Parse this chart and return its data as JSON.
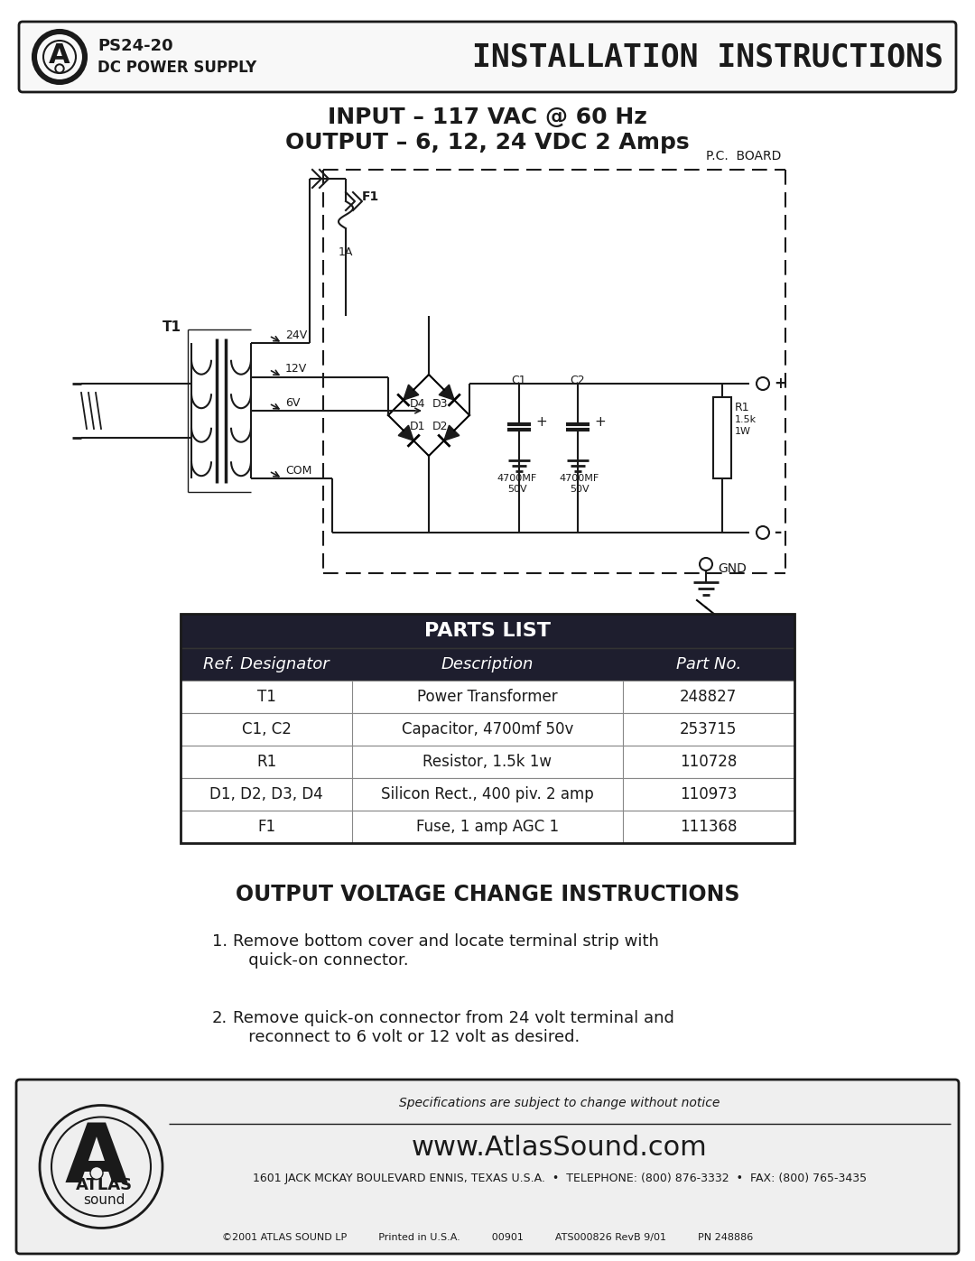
{
  "bg_color": "#ffffff",
  "title_text": "INSTALLATION INSTRUCTIONS",
  "model_text": "PS24-20",
  "type_text": "DC POWER SUPPLY",
  "input_line1": "INPUT – 117 VAC @ 60 Hz",
  "input_line2": "OUTPUT – 6, 12, 24 VDC 2 Amps",
  "parts_list_header": "PARTS LIST",
  "parts_list_col_headers": [
    "Ref. Designator",
    "Description",
    "Part No."
  ],
  "parts_list_rows": [
    [
      "T1",
      "Power Transformer",
      "248827"
    ],
    [
      "C1, C2",
      "Capacitor, 4700mf 50v",
      "253715"
    ],
    [
      "R1",
      "Resistor, 1.5k 1w",
      "110728"
    ],
    [
      "D1, D2, D3, D4",
      "Silicon Rect., 400 piv. 2 amp",
      "110973"
    ],
    [
      "F1",
      "Fuse, 1 amp AGC 1",
      "111368"
    ]
  ],
  "output_voltage_title": "OUTPUT VOLTAGE CHANGE INSTRUCTIONS",
  "step1_num": "1.",
  "step1_text": "Remove bottom cover and locate terminal strip with\n   quick-on connector.",
  "step2_num": "2.",
  "step2_text": "Remove quick-on connector from 24 volt terminal and\n   reconnect to 6 volt or 12 volt as desired.",
  "footer_website": "www.AtlasSound.com",
  "footer_address": "1601 JACK MCKAY BOULEVARD ENNIS, TEXAS U.S.A.  •  TELEPHONE: (800) 876-3332  •  FAX: (800) 765-3435",
  "footer_copy": "©2001 ATLAS SOUND LP",
  "footer_printed": "Printed in U.S.A.",
  "footer_num": "00901",
  "footer_ats": "ATS000826 RevB 9/01",
  "footer_pn": "PN 248886",
  "footer_specs": "Specifications are subject to change without notice",
  "table_bg_dark": "#1e1e2e",
  "table_bg_light": "#ffffff"
}
